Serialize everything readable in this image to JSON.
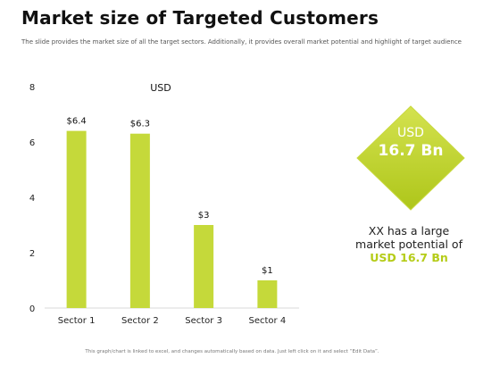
{
  "page": {
    "title": "Market size of Targeted Customers",
    "subtitle": "The slide provides the market size of all the target sectors. Additionally, it provides overall market potential and highlight  of target audience",
    "footnote": "This graph/chart is linked to excel, and changes automatically based on data. Just left click on it and select “Edit Data”."
  },
  "chart_data": {
    "type": "bar",
    "title": "USD",
    "categories": [
      "Sector 1",
      "Sector 2",
      "Sector 3",
      "Sector 4"
    ],
    "values": [
      6.4,
      6.3,
      3,
      1
    ],
    "data_labels": [
      "$6.4",
      "$6.3",
      "$3",
      "$1"
    ],
    "ylim": [
      0,
      8
    ],
    "yticks": [
      0,
      2,
      4,
      6,
      8
    ],
    "xlabel": "",
    "ylabel": "",
    "grid": false,
    "bar_color": "#c5d93a"
  },
  "highlight": {
    "currency": "USD",
    "value": "16.7 Bn",
    "line1": "XX has a large",
    "line2": "market potential of",
    "line3": "USD 16.7 Bn",
    "accent_color": "#b5cc18"
  }
}
